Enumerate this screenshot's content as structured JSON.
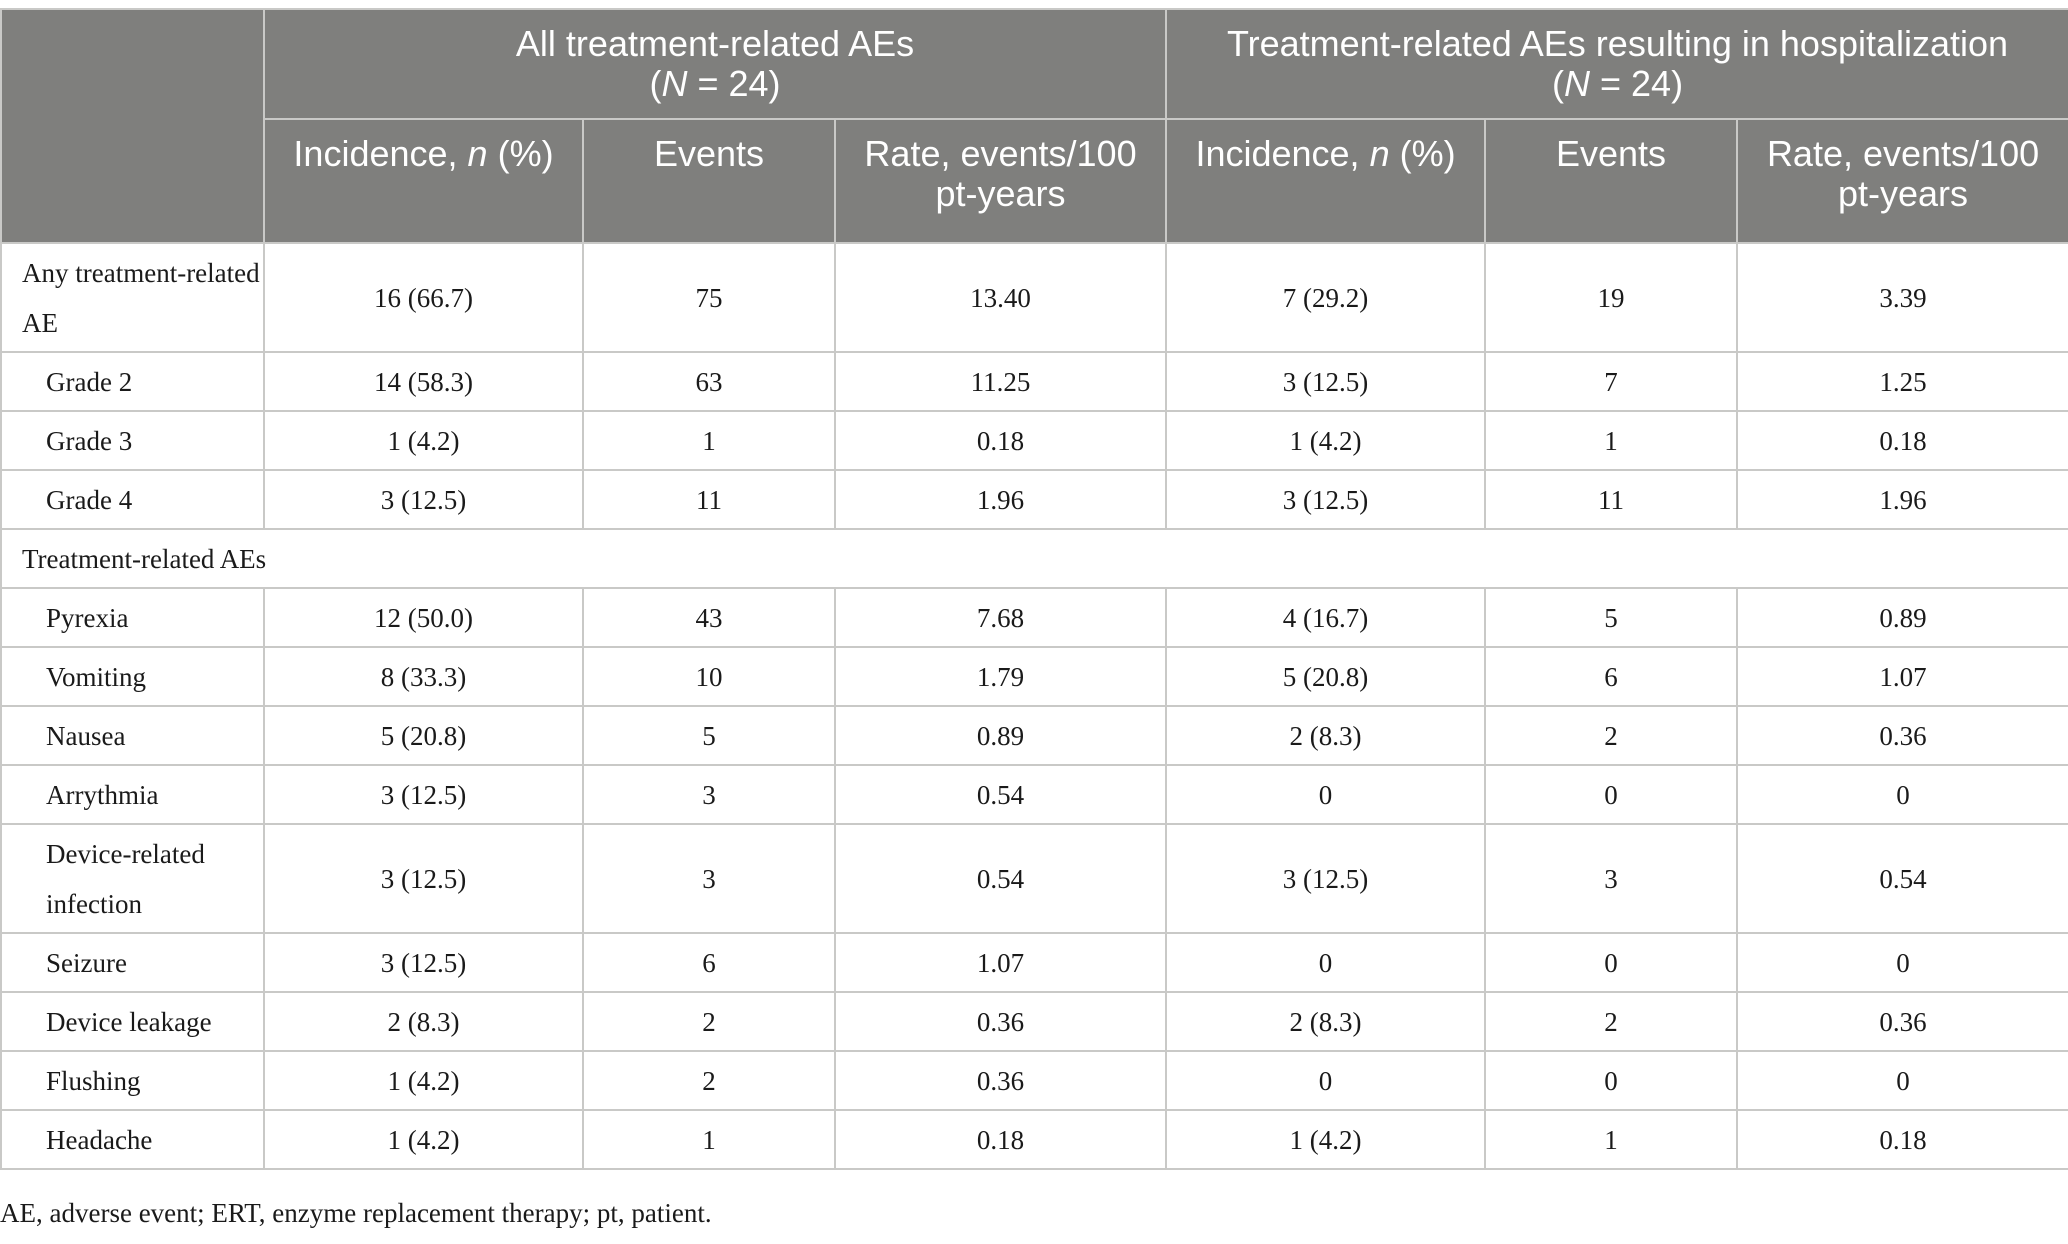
{
  "header": {
    "group1": {
      "title": "All treatment-related AEs",
      "n_prefix": "(",
      "n_italic": "N",
      "n_suffix": " = 24)"
    },
    "group2": {
      "title": "Treatment-related AEs resulting in hospitalization",
      "n_prefix": "(",
      "n_italic": "N",
      "n_suffix": " = 24)"
    },
    "sub": {
      "incidence_prefix": "Incidence, ",
      "incidence_italic": "n",
      "incidence_suffix": " (%)",
      "events": "Events",
      "rate": "Rate, events/100 pt-years"
    }
  },
  "rows": [
    {
      "label": "Any treatment-related AE",
      "indent": false,
      "tall": true,
      "values": [
        "16 (66.7)",
        "75",
        "13.40",
        "7 (29.2)",
        "19",
        "3.39"
      ]
    },
    {
      "label": "Grade 2",
      "indent": true,
      "tall": false,
      "values": [
        "14 (58.3)",
        "63",
        "11.25",
        "3 (12.5)",
        "7",
        "1.25"
      ]
    },
    {
      "label": "Grade 3",
      "indent": true,
      "tall": false,
      "values": [
        "1 (4.2)",
        "1",
        "0.18",
        "1 (4.2)",
        "1",
        "0.18"
      ]
    },
    {
      "label": "Grade 4",
      "indent": true,
      "tall": false,
      "values": [
        "3 (12.5)",
        "11",
        "1.96",
        "3 (12.5)",
        "11",
        "1.96"
      ]
    }
  ],
  "section_label": "Treatment-related AEs",
  "ae_rows": [
    {
      "label": "Pyrexia",
      "tall": false,
      "values": [
        "12 (50.0)",
        "43",
        "7.68",
        "4 (16.7)",
        "5",
        "0.89"
      ]
    },
    {
      "label": "Vomiting",
      "tall": false,
      "values": [
        "8 (33.3)",
        "10",
        "1.79",
        "5 (20.8)",
        "6",
        "1.07"
      ]
    },
    {
      "label": "Nausea",
      "tall": false,
      "values": [
        "5 (20.8)",
        "5",
        "0.89",
        "2 (8.3)",
        "2",
        "0.36"
      ]
    },
    {
      "label": "Arrythmia",
      "tall": false,
      "values": [
        "3 (12.5)",
        "3",
        "0.54",
        "0",
        "0",
        "0"
      ]
    },
    {
      "label": "Device-related infection",
      "tall": true,
      "values": [
        "3 (12.5)",
        "3",
        "0.54",
        "3 (12.5)",
        "3",
        "0.54"
      ]
    },
    {
      "label": "Seizure",
      "tall": false,
      "values": [
        "3 (12.5)",
        "6",
        "1.07",
        "0",
        "0",
        "0"
      ]
    },
    {
      "label": "Device leakage",
      "tall": false,
      "values": [
        "2 (8.3)",
        "2",
        "0.36",
        "2 (8.3)",
        "2",
        "0.36"
      ]
    },
    {
      "label": "Flushing",
      "tall": false,
      "values": [
        "1 (4.2)",
        "2",
        "0.36",
        "0",
        "0",
        "0"
      ]
    },
    {
      "label": "Headache",
      "tall": false,
      "values": [
        "1 (4.2)",
        "1",
        "0.18",
        "1 (4.2)",
        "1",
        "0.18"
      ]
    }
  ],
  "footnote": "AE, adverse event; ERT, enzyme replacement therapy; pt, patient.",
  "colors": {
    "header_bg": "#7f7f7d",
    "header_text": "#ffffff",
    "border": "#c9c9c7"
  }
}
